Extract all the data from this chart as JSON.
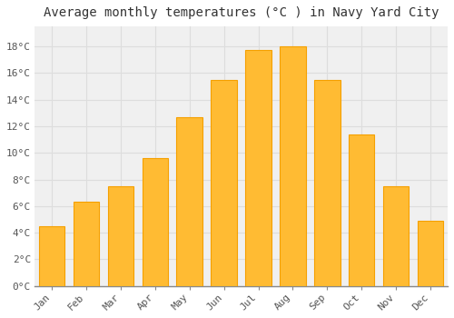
{
  "title": "Average monthly temperatures (°C ) in Navy Yard City",
  "months": [
    "Jan",
    "Feb",
    "Mar",
    "Apr",
    "May",
    "Jun",
    "Jul",
    "Aug",
    "Sep",
    "Oct",
    "Nov",
    "Dec"
  ],
  "temperatures": [
    4.5,
    6.3,
    7.5,
    9.6,
    12.7,
    15.5,
    17.7,
    18.0,
    15.5,
    11.4,
    7.5,
    4.9
  ],
  "bar_color": "#FFBB33",
  "bar_edge_color": "#F5A000",
  "bar_shadow_color": "#E89000",
  "ylim": [
    0,
    19.5
  ],
  "yticks": [
    0,
    2,
    4,
    6,
    8,
    10,
    12,
    14,
    16,
    18
  ],
  "background_color": "#FFFFFF",
  "plot_bg_color": "#F0F0F0",
  "grid_color": "#DDDDDD",
  "title_fontsize": 10,
  "tick_fontsize": 8,
  "font_family": "monospace"
}
